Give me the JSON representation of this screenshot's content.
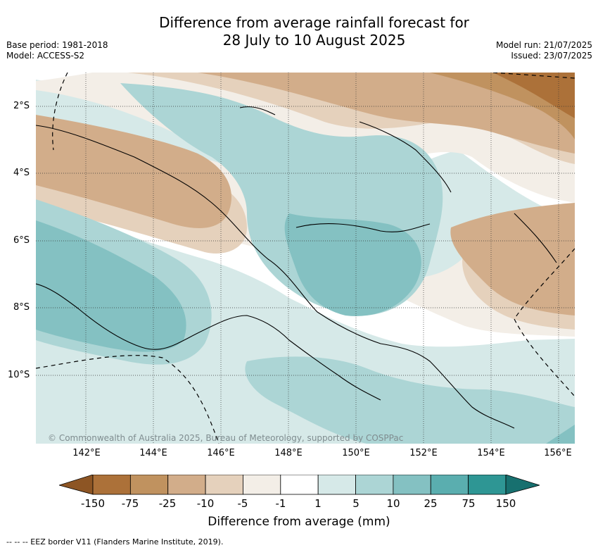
{
  "title": {
    "line1": "Difference from average rainfall forecast for",
    "line2": "28 July to 10 August 2025"
  },
  "meta_left": {
    "base_period": "Base period: 1981-2018",
    "model": "Model: ACCESS-S2"
  },
  "meta_right": {
    "model_run": "Model run: 21/07/2025",
    "issued": "Issued: 23/07/2025"
  },
  "map": {
    "lat_labels": [
      "2°S",
      "4°S",
      "6°S",
      "8°S",
      "10°S"
    ],
    "lon_labels": [
      "142°E",
      "144°E",
      "146°E",
      "148°E",
      "150°E",
      "152°E",
      "154°E",
      "156°E"
    ],
    "copyright": "© Commonwealth of Australia 2025, Bureau of Meteorology, supported by COSPPac"
  },
  "colorbar": {
    "ticks": [
      "-150",
      "-75",
      "-25",
      "-10",
      "-5",
      "-1",
      "1",
      "5",
      "10",
      "25",
      "75",
      "150"
    ],
    "colors": [
      "#8d5524",
      "#ac7139",
      "#c0925f",
      "#d2ad8a",
      "#e5d1bc",
      "#f3eee7",
      "#ffffff",
      "#d6e9e8",
      "#acd5d5",
      "#84c1c2",
      "#5aaeaf",
      "#2e9694",
      "#17706f"
    ],
    "label": "Difference from average (mm)"
  },
  "footer": {
    "eez_note": "--  --  -- EEZ border V11 (Flanders Marine Institute, 2019)."
  }
}
